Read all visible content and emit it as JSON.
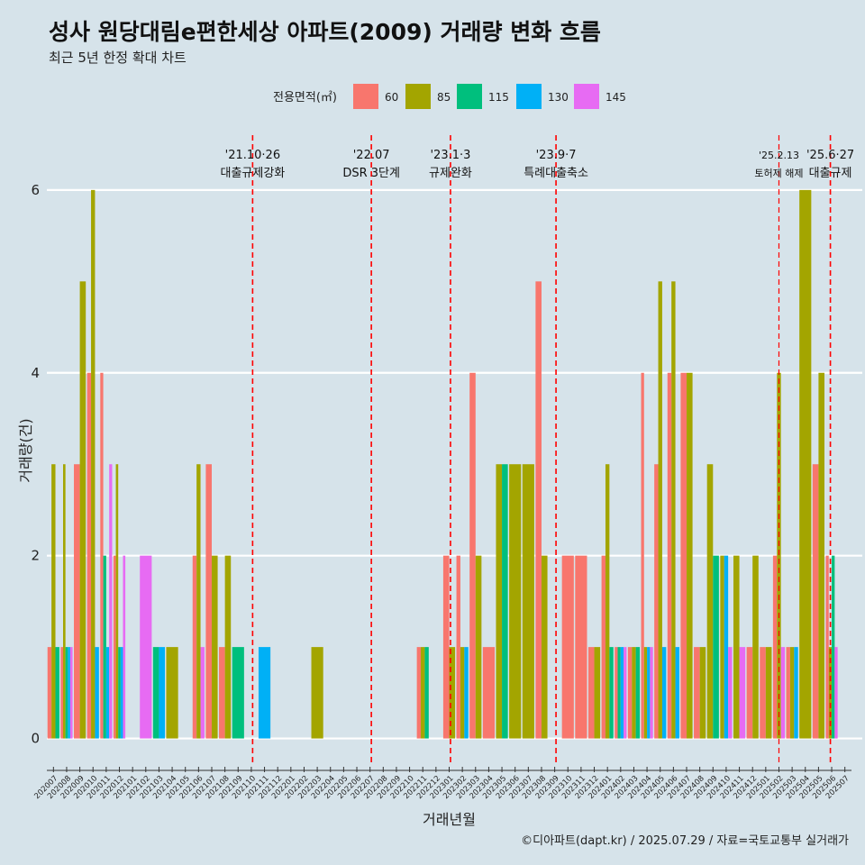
{
  "title": "성사 원당대림e편한세상 아파트(2009) 거래량 변화 흐름",
  "subtitle": "최근 5년 한정 확대 차트",
  "caption": "©디아파트(dapt.kr) / 2025.07.29 / 자료=국토교통부 실거래가",
  "colors": {
    "background": "#d6e3ea",
    "s60": "#f8766d",
    "s85": "#a3a500",
    "s115": "#00bf7d",
    "s130": "#00b0f6",
    "s145": "#e76bf3",
    "vline": "#ff0000"
  },
  "chart_data": {
    "type": "bar",
    "xlabel": "거래년월",
    "ylabel": "거래량(건)",
    "ylim": [
      -0.3,
      6.6
    ],
    "yticks": [
      0,
      2,
      4,
      6
    ],
    "legend_title": "전용면적(㎡)",
    "legend_position": "top",
    "categories": [
      "202007",
      "202008",
      "202009",
      "202010",
      "202011",
      "202012",
      "202101",
      "202102",
      "202103",
      "202104",
      "202105",
      "202106",
      "202107",
      "202108",
      "202109",
      "202110",
      "202111",
      "202112",
      "202201",
      "202202",
      "202203",
      "202204",
      "202205",
      "202206",
      "202207",
      "202208",
      "202209",
      "202210",
      "202211",
      "202212",
      "202301",
      "202302",
      "202303",
      "202304",
      "202305",
      "202306",
      "202307",
      "202308",
      "202309",
      "202310",
      "202311",
      "202312",
      "202401",
      "202402",
      "202403",
      "202404",
      "202405",
      "202406",
      "202407",
      "202408",
      "202409",
      "202410",
      "202411",
      "202412",
      "202501",
      "202502",
      "202503",
      "202504",
      "202505",
      "202506",
      "202507"
    ],
    "series": [
      {
        "name": "60",
        "values": [
          1,
          1,
          3,
          4,
          4,
          2,
          0,
          0,
          0,
          0,
          0,
          2,
          3,
          1,
          0,
          0,
          0,
          0,
          0,
          0,
          0,
          0,
          0,
          0,
          0,
          0,
          0,
          0,
          1,
          0,
          2,
          2,
          4,
          1,
          0,
          0,
          0,
          5,
          0,
          2,
          2,
          1,
          2,
          1,
          1,
          4,
          3,
          4,
          4,
          1,
          0,
          0,
          0,
          1,
          1,
          2,
          1,
          0,
          3,
          2,
          0
        ]
      },
      {
        "name": "85",
        "values": [
          3,
          3,
          5,
          6,
          0,
          3,
          0,
          0,
          0,
          1,
          0,
          3,
          2,
          2,
          0,
          0,
          0,
          0,
          0,
          0,
          1,
          0,
          0,
          0,
          0,
          0,
          0,
          0,
          1,
          0,
          1,
          1,
          2,
          0,
          3,
          3,
          3,
          2,
          0,
          0,
          0,
          1,
          3,
          0,
          1,
          1,
          5,
          5,
          4,
          1,
          3,
          2,
          2,
          2,
          1,
          4,
          1,
          6,
          4,
          1,
          0
        ]
      },
      {
        "name": "115",
        "values": [
          1,
          1,
          0,
          0,
          2,
          1,
          0,
          0,
          1,
          0,
          0,
          0,
          0,
          0,
          1,
          0,
          0,
          0,
          0,
          0,
          0,
          0,
          0,
          0,
          0,
          0,
          0,
          0,
          1,
          0,
          0,
          0,
          0,
          0,
          3,
          0,
          0,
          0,
          0,
          0,
          0,
          0,
          1,
          1,
          1,
          0,
          0,
          0,
          0,
          0,
          2,
          0,
          0,
          0,
          0,
          0,
          0,
          0,
          0,
          2,
          0
        ]
      },
      {
        "name": "130",
        "values": [
          0,
          1,
          0,
          1,
          1,
          1,
          0,
          0,
          1,
          0,
          0,
          0,
          0,
          0,
          0,
          0,
          1,
          0,
          0,
          0,
          0,
          0,
          0,
          0,
          0,
          0,
          0,
          0,
          0,
          0,
          0,
          1,
          0,
          0,
          0,
          0,
          0,
          0,
          0,
          0,
          0,
          0,
          0,
          1,
          0,
          1,
          1,
          1,
          0,
          0,
          0,
          2,
          0,
          0,
          0,
          0,
          1,
          0,
          0,
          0,
          0
        ]
      },
      {
        "name": "145",
        "values": [
          0,
          1,
          0,
          0,
          3,
          2,
          0,
          2,
          0,
          0,
          0,
          1,
          0,
          0,
          0,
          0,
          0,
          0,
          0,
          0,
          0,
          0,
          0,
          0,
          0,
          0,
          0,
          0,
          0,
          0,
          0,
          0,
          0,
          0,
          0,
          0,
          0,
          0,
          0,
          0,
          0,
          0,
          0,
          1,
          0,
          1,
          0,
          0,
          0,
          0,
          0,
          1,
          1,
          0,
          0,
          1,
          0,
          0,
          0,
          1,
          0
        ]
      }
    ],
    "events": [
      {
        "x": 15.6,
        "date": "'21.10·26",
        "label": "대출규제강화"
      },
      {
        "x": 24.6,
        "date": "'22.07",
        "label": "DSR 3단계"
      },
      {
        "x": 30.6,
        "date": "'23.1·3",
        "label": "규제완화"
      },
      {
        "x": 38.6,
        "date": "'23.9·7",
        "label": "특례대출축소"
      },
      {
        "x": 55.5,
        "date": "'25.2.13",
        "label": "토허제 해제"
      },
      {
        "x": 59.4,
        "date": "'25.6·27",
        "label": "대출규제"
      }
    ]
  }
}
